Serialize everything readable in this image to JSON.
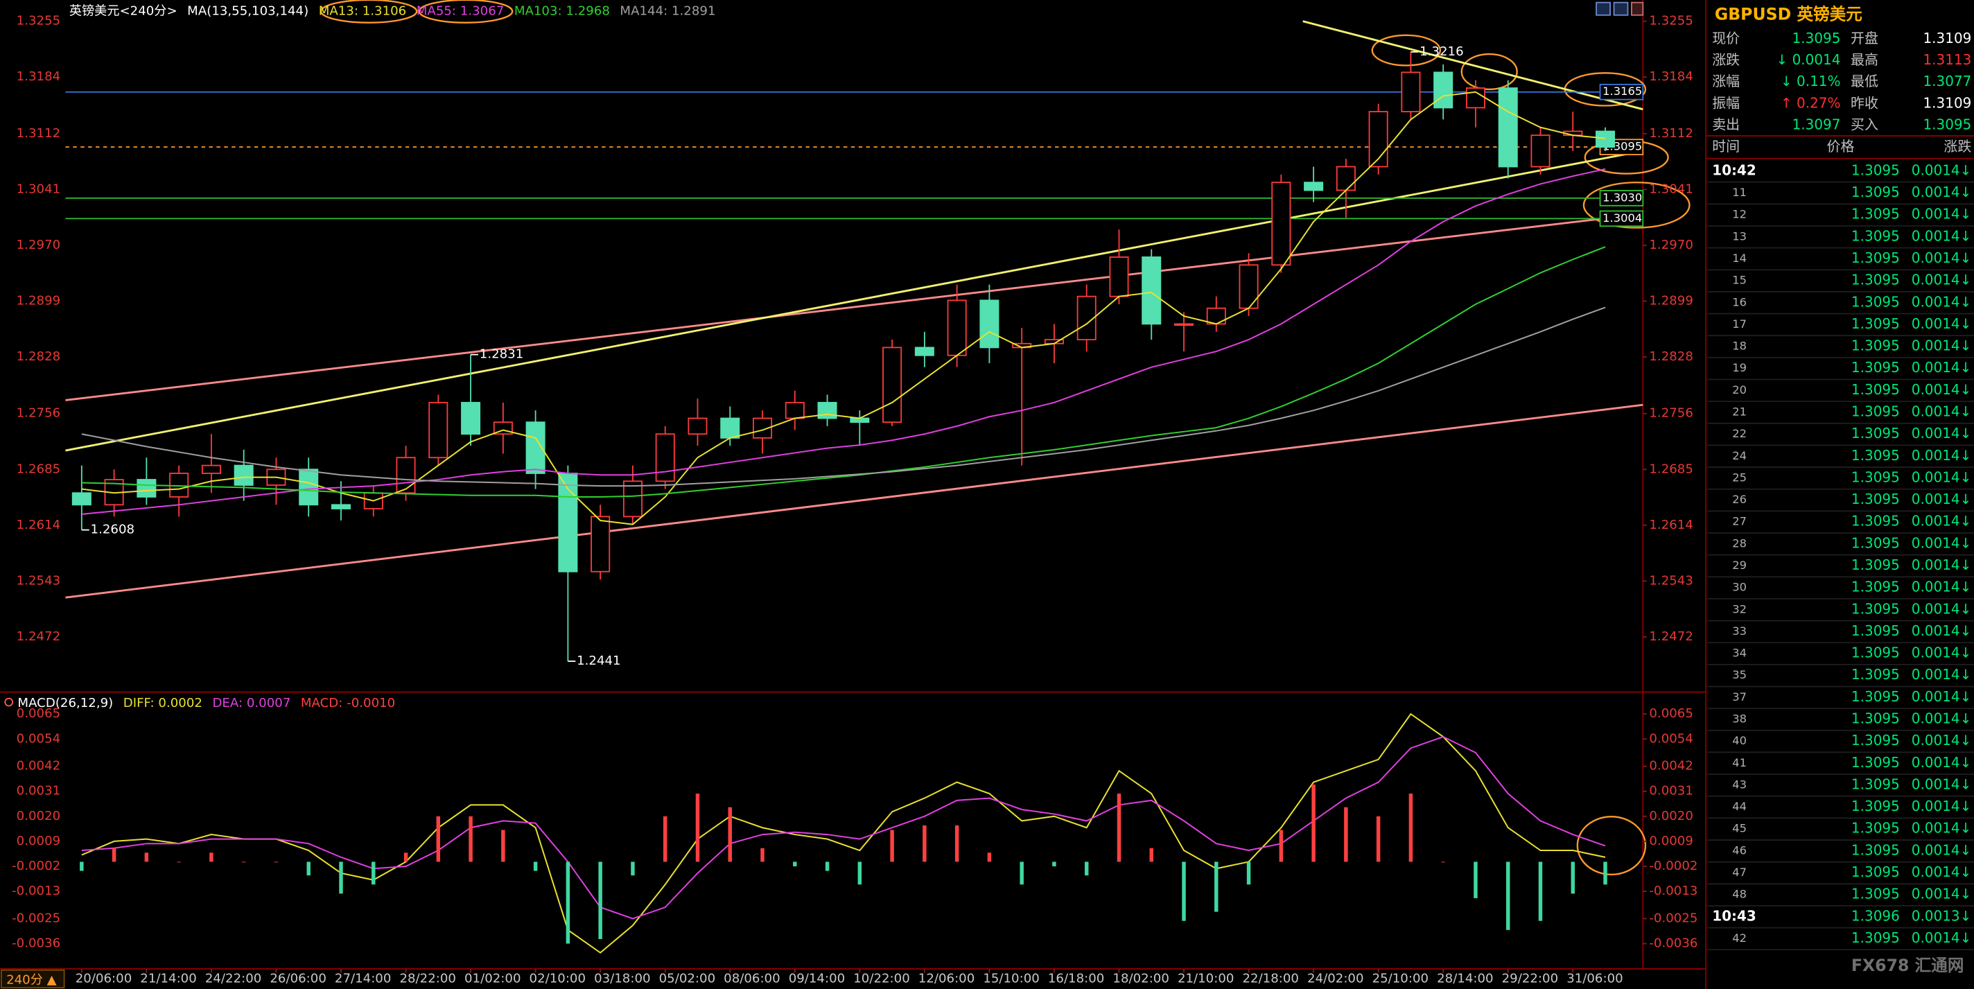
{
  "chart_data": [
    {
      "type": "candlestick",
      "title": "英镑美元<240分>",
      "subtitle": "MA(13,55,103,144)",
      "categories": [
        "20/06:00",
        null,
        "21/14:00",
        null,
        "24/22:00",
        null,
        "26/06:00",
        null,
        "27/14:00",
        null,
        "28/22:00",
        null,
        "01/02:00",
        null,
        "02/10:00",
        null,
        "03/18:00",
        null,
        "05/02:00",
        null,
        "08/06:00",
        null,
        "09/14:00",
        null,
        "10/22:00",
        null,
        "12/06:00",
        null,
        "15/10:00",
        null,
        "16/18:00",
        null,
        "18/02:00",
        null,
        "21/10:00",
        null,
        "22/18:00",
        null,
        "24/02:00",
        null,
        "25/10:00",
        null,
        "28/14:00",
        null,
        "29/22:00",
        null,
        "31/06:00",
        null
      ],
      "open": [
        1.2655,
        1.264,
        1.2672,
        1.265,
        1.268,
        1.269,
        1.2665,
        1.2685,
        1.264,
        1.2635,
        1.2655,
        1.27,
        1.277,
        1.273,
        1.2745,
        1.268,
        1.2555,
        1.2625,
        1.267,
        1.273,
        1.275,
        1.2725,
        1.275,
        1.277,
        1.275,
        1.2745,
        1.284,
        1.283,
        1.29,
        1.284,
        1.2845,
        1.285,
        1.2905,
        1.2955,
        1.287,
        1.287,
        1.289,
        1.2945,
        1.305,
        1.304,
        1.307,
        1.314,
        1.319,
        1.3145,
        1.317,
        1.307,
        1.311,
        1.3115
      ],
      "high": [
        1.269,
        1.2685,
        1.27,
        1.269,
        1.273,
        1.271,
        1.27,
        1.27,
        1.267,
        1.2665,
        1.2715,
        1.278,
        1.2831,
        1.277,
        1.276,
        1.269,
        1.264,
        1.269,
        1.274,
        1.2775,
        1.2765,
        1.276,
        1.2785,
        1.278,
        1.276,
        1.285,
        1.286,
        1.292,
        1.292,
        1.2865,
        1.287,
        1.292,
        1.299,
        1.2965,
        1.2885,
        1.2905,
        1.296,
        1.306,
        1.307,
        1.308,
        1.315,
        1.3216,
        1.32,
        1.318,
        1.318,
        1.312,
        1.314,
        1.312
      ],
      "low": [
        1.2608,
        1.2625,
        1.264,
        1.2625,
        1.2655,
        1.2645,
        1.264,
        1.2625,
        1.262,
        1.2625,
        1.2645,
        1.269,
        1.2715,
        1.2705,
        1.266,
        1.2441,
        1.2545,
        1.2615,
        1.266,
        1.2715,
        1.2715,
        1.2705,
        1.2735,
        1.274,
        1.2715,
        1.274,
        1.2815,
        1.2815,
        1.282,
        1.269,
        1.282,
        1.2835,
        1.2895,
        1.285,
        1.2835,
        1.286,
        1.288,
        1.2935,
        1.3025,
        1.3005,
        1.306,
        1.313,
        1.313,
        1.312,
        1.3055,
        1.306,
        1.309,
        1.309
      ],
      "close": [
        1.264,
        1.2672,
        1.265,
        1.268,
        1.269,
        1.2665,
        1.2685,
        1.264,
        1.2635,
        1.2655,
        1.27,
        1.277,
        1.273,
        1.2745,
        1.268,
        1.2555,
        1.2625,
        1.267,
        1.273,
        1.275,
        1.2725,
        1.275,
        1.277,
        1.275,
        1.2745,
        1.284,
        1.283,
        1.29,
        1.284,
        1.2845,
        1.285,
        1.2905,
        1.2955,
        1.287,
        1.287,
        1.289,
        1.2945,
        1.305,
        1.304,
        1.307,
        1.314,
        1.319,
        1.3145,
        1.317,
        1.307,
        1.311,
        1.3115,
        1.3095
      ],
      "up_color": "#ff3b3b",
      "down_color": "#54e0b0",
      "series": [
        {
          "name": "MA13: 1.3106",
          "color": "#e8e030",
          "values": [
            1.266,
            1.2655,
            1.2658,
            1.266,
            1.267,
            1.2675,
            1.2675,
            1.2668,
            1.2655,
            1.2645,
            1.266,
            1.269,
            1.272,
            1.2735,
            1.2725,
            1.266,
            1.262,
            1.2615,
            1.265,
            1.27,
            1.2725,
            1.2735,
            1.275,
            1.2755,
            1.275,
            1.277,
            1.28,
            1.283,
            1.286,
            1.284,
            1.2845,
            1.287,
            1.2905,
            1.291,
            1.288,
            1.287,
            1.289,
            1.294,
            1.3,
            1.304,
            1.308,
            1.313,
            1.316,
            1.3165,
            1.314,
            1.312,
            1.311,
            1.3106
          ]
        },
        {
          "name": "MA55: 1.3067",
          "color": "#e040e0",
          "values": [
            1.2628,
            1.2632,
            1.2636,
            1.264,
            1.2645,
            1.265,
            1.2655,
            1.266,
            1.2662,
            1.2664,
            1.2668,
            1.2672,
            1.2678,
            1.2682,
            1.2685,
            1.268,
            1.2678,
            1.2678,
            1.2682,
            1.2688,
            1.2694,
            1.27,
            1.2706,
            1.2712,
            1.2716,
            1.2722,
            1.273,
            1.274,
            1.2752,
            1.276,
            1.277,
            1.2785,
            1.28,
            1.2815,
            1.2825,
            1.2835,
            1.285,
            1.287,
            1.2895,
            1.292,
            1.2945,
            1.2975,
            1.3,
            1.302,
            1.3035,
            1.3048,
            1.3058,
            1.3067
          ]
        },
        {
          "name": "MA103: 1.2968",
          "color": "#30d030",
          "values": [
            1.2668,
            1.2667,
            1.2665,
            1.2664,
            1.2663,
            1.2662,
            1.266,
            1.2658,
            1.2656,
            1.2655,
            1.2654,
            1.2653,
            1.2652,
            1.2652,
            1.2652,
            1.265,
            1.265,
            1.2651,
            1.2654,
            1.2658,
            1.2662,
            1.2666,
            1.267,
            1.2674,
            1.2678,
            1.2683,
            1.2688,
            1.2694,
            1.27,
            1.2705,
            1.271,
            1.2716,
            1.2722,
            1.2728,
            1.2733,
            1.2738,
            1.275,
            1.2765,
            1.2782,
            1.28,
            1.282,
            1.2845,
            1.287,
            1.2895,
            1.2915,
            1.2935,
            1.2952,
            1.2968
          ]
        },
        {
          "name": "MA144: 1.2891",
          "color": "#a0a0a0",
          "values": [
            1.273,
            1.2722,
            1.2714,
            1.2707,
            1.27,
            1.2694,
            1.2688,
            1.2683,
            1.2678,
            1.2675,
            1.2672,
            1.267,
            1.2669,
            1.2668,
            1.2667,
            1.2665,
            1.2664,
            1.2664,
            1.2665,
            1.2667,
            1.2669,
            1.2671,
            1.2673,
            1.2676,
            1.2679,
            1.2682,
            1.2686,
            1.269,
            1.2695,
            1.27,
            1.2705,
            1.271,
            1.2716,
            1.2722,
            1.2728,
            1.2734,
            1.2741,
            1.275,
            1.276,
            1.2772,
            1.2785,
            1.28,
            1.2815,
            1.283,
            1.2845,
            1.286,
            1.2876,
            1.2891
          ]
        }
      ],
      "extreme_labels": [
        1.2608,
        1.2831,
        1.2441,
        1.3216
      ],
      "hlines": [
        {
          "value": 1.3165,
          "color": "#3a78e0"
        },
        {
          "value": 1.3095,
          "color": "#ff9a2e",
          "dashed": true
        },
        {
          "value": 1.303,
          "label": "1.3030",
          "color": "#30c030"
        },
        {
          "value": 1.3004,
          "color": "#30c030"
        }
      ],
      "trendlines": [
        {
          "points": [
            [
              -0.5,
              1.2522
            ],
            [
              48.16,
              1.2767
            ]
          ],
          "color": "#ff8a8a"
        },
        {
          "points": [
            [
              -0.5,
              1.2773
            ],
            [
              48.16,
              1.301
            ]
          ],
          "color": "#ff8a8a"
        },
        {
          "points": [
            [
              -0.5,
              1.2709
            ],
            [
              48.16,
              1.309
            ]
          ],
          "color": "#f0f070"
        },
        {
          "points": [
            [
              37.67,
              1.3255
            ],
            [
              48.16,
              1.3143
            ]
          ],
          "color": "#f0f070"
        }
      ],
      "ylim": [
        1.2405,
        1.3274
      ],
      "yticks": [
        1.3255,
        1.3184,
        1.3112,
        1.3041,
        {
          "value": 1.297,
          "label": "1.2970"
        },
        1.2899,
        1.2828,
        1.2756,
        1.2685,
        1.2614,
        1.2543,
        1.2472
      ]
    },
    {
      "type": "line",
      "title": "MACD(26,12,9)",
      "series": [
        {
          "name": "DIFF: 0.0002",
          "color": "#e8e030",
          "values": [
            0.0003,
            0.0009,
            0.001,
            0.0008,
            0.0012,
            0.001,
            0.001,
            0.0005,
            -0.0005,
            -0.0008,
            0.0,
            0.0015,
            0.0025,
            0.0025,
            0.0015,
            -0.003,
            -0.004,
            -0.0028,
            -0.001,
            0.001,
            0.002,
            0.0015,
            0.0012,
            0.001,
            0.0005,
            0.0022,
            0.0028,
            0.0035,
            0.003,
            0.0018,
            0.002,
            0.0015,
            0.004,
            0.003,
            0.0005,
            -0.0003,
            0.0,
            0.0015,
            0.0035,
            0.004,
            0.0045,
            0.0065,
            0.0055,
            0.004,
            0.0015,
            0.0005,
            0.0005,
            0.0002
          ]
        },
        {
          "name": "DEA: 0.0007",
          "color": "#e040e0",
          "values": [
            0.0005,
            0.0006,
            0.0008,
            0.0008,
            0.001,
            0.001,
            0.001,
            0.0008,
            0.0002,
            -0.0003,
            -0.0002,
            0.0005,
            0.0015,
            0.0018,
            0.0017,
            0.0,
            -0.002,
            -0.0025,
            -0.002,
            -0.0005,
            0.0008,
            0.0012,
            0.0013,
            0.0012,
            0.001,
            0.0015,
            0.002,
            0.0027,
            0.0028,
            0.0023,
            0.0021,
            0.0018,
            0.0025,
            0.0027,
            0.0018,
            0.0008,
            0.0005,
            0.0008,
            0.0018,
            0.0028,
            0.0035,
            0.005,
            0.0055,
            0.0048,
            0.003,
            0.0018,
            0.0012,
            0.0007
          ]
        },
        {
          "name": "MACD: -0.0010",
          "type": "bar",
          "color": "#ff4040",
          "negative_color": "#3fd8a0",
          "values": [
            -0.0004,
            0.0006,
            0.0004,
            0.0,
            0.0004,
            0.0,
            0.0,
            -0.0006,
            -0.0014,
            -0.001,
            0.0004,
            0.002,
            0.002,
            0.0014,
            -0.0004,
            -0.0036,
            -0.0034,
            -0.0006,
            0.002,
            0.003,
            0.0024,
            0.0006,
            -0.0002,
            -0.0004,
            -0.001,
            0.0014,
            0.0016,
            0.0016,
            0.0004,
            -0.001,
            -0.0002,
            -0.0006,
            0.003,
            0.0006,
            -0.0026,
            -0.0022,
            -0.001,
            0.0014,
            0.0034,
            0.0024,
            0.002,
            0.003,
            0.0,
            -0.0016,
            -0.003,
            -0.0026,
            -0.0014,
            -0.001
          ]
        }
      ],
      "ylim": [
        -0.0046,
        0.0073
      ],
      "yticks": [
        0.0065,
        0.0054,
        0.0042,
        0.0031,
        {
          "value": 0.002,
          "label": "0.0020"
        },
        0.0009,
        -0.0002,
        -0.0013,
        -0.0025,
        -0.0036
      ]
    }
  ],
  "quote_panel": {
    "title": "GBPUSD 英镑美元",
    "rows": [
      [
        {
          "label": "现价",
          "value": "1.3095",
          "color": "#00e676"
        },
        {
          "label": "开盘",
          "value": "1.3109",
          "color": "#ffffff"
        }
      ],
      [
        {
          "label": "涨跌",
          "value": "↓ 0.0014",
          "color": "#00e676"
        },
        {
          "label": "最高",
          "value": "1.3113",
          "color": "#ff3030"
        }
      ],
      [
        {
          "label": "涨幅",
          "value": "↓ 0.11%",
          "color": "#00e676"
        },
        {
          "label": "最低",
          "value": "1.3077",
          "color": "#00e676"
        }
      ],
      [
        {
          "label": "振幅",
          "value": "↑ 0.27%",
          "color": "#ff3030"
        },
        {
          "label": "昨收",
          "value": "1.3109",
          "color": "#ffffff"
        }
      ],
      [
        {
          "label": "卖出",
          "value": "1.3097",
          "color": "#00e676"
        },
        {
          "label": "买入",
          "value": "1.3095",
          "color": "#00e676"
        }
      ]
    ]
  },
  "trade_list": {
    "columns": [
      "时间",
      "价格",
      "涨跌"
    ],
    "rows": [
      [
        "10:42",
        "1.3095",
        "0.0014↓"
      ],
      [
        "11",
        "1.3095",
        "0.0014↓"
      ],
      [
        "12",
        "1.3095",
        "0.0014↓"
      ],
      [
        "13",
        "1.3095",
        "0.0014↓"
      ],
      [
        "14",
        "1.3095",
        "0.0014↓"
      ],
      [
        "15",
        "1.3095",
        "0.0014↓"
      ],
      [
        "16",
        "1.3095",
        "0.0014↓"
      ],
      [
        "17",
        "1.3095",
        "0.0014↓"
      ],
      [
        "18",
        "1.3095",
        "0.0014↓"
      ],
      [
        "19",
        "1.3095",
        "0.0014↓"
      ],
      [
        "20",
        "1.3095",
        "0.0014↓"
      ],
      [
        "21",
        "1.3095",
        "0.0014↓"
      ],
      [
        "22",
        "1.3095",
        "0.0014↓"
      ],
      [
        "24",
        "1.3095",
        "0.0014↓"
      ],
      [
        "25",
        "1.3095",
        "0.0014↓"
      ],
      [
        "26",
        "1.3095",
        "0.0014↓"
      ],
      [
        "27",
        "1.3095",
        "0.0014↓"
      ],
      [
        "28",
        "1.3095",
        "0.0014↓"
      ],
      [
        "29",
        "1.3095",
        "0.0014↓"
      ],
      [
        "30",
        "1.3095",
        "0.0014↓"
      ],
      [
        "32",
        "1.3095",
        "0.0014↓"
      ],
      [
        "33",
        "1.3095",
        "0.0014↓"
      ],
      [
        "34",
        "1.3095",
        "0.0014↓"
      ],
      [
        "35",
        "1.3095",
        "0.0014↓"
      ],
      [
        "37",
        "1.3095",
        "0.0014↓"
      ],
      [
        "38",
        "1.3095",
        "0.0014↓"
      ],
      [
        "40",
        "1.3095",
        "0.0014↓"
      ],
      [
        "41",
        "1.3095",
        "0.0014↓"
      ],
      [
        "43",
        "1.3095",
        "0.0014↓"
      ],
      [
        "44",
        "1.3095",
        "0.0014↓"
      ],
      [
        "45",
        "1.3095",
        "0.0014↓"
      ],
      [
        "46",
        "1.3095",
        "0.0014↓"
      ],
      [
        "47",
        "1.3095",
        "0.0014↓"
      ],
      [
        "48",
        "1.3095",
        "0.0014↓"
      ],
      [
        "10:43",
        "1.3096",
        "0.0013↓"
      ],
      [
        "42",
        "1.3095",
        "0.0014↓"
      ]
    ]
  },
  "footer": {
    "period": "240分 ▲",
    "watermark": "FX678 汇通网"
  }
}
